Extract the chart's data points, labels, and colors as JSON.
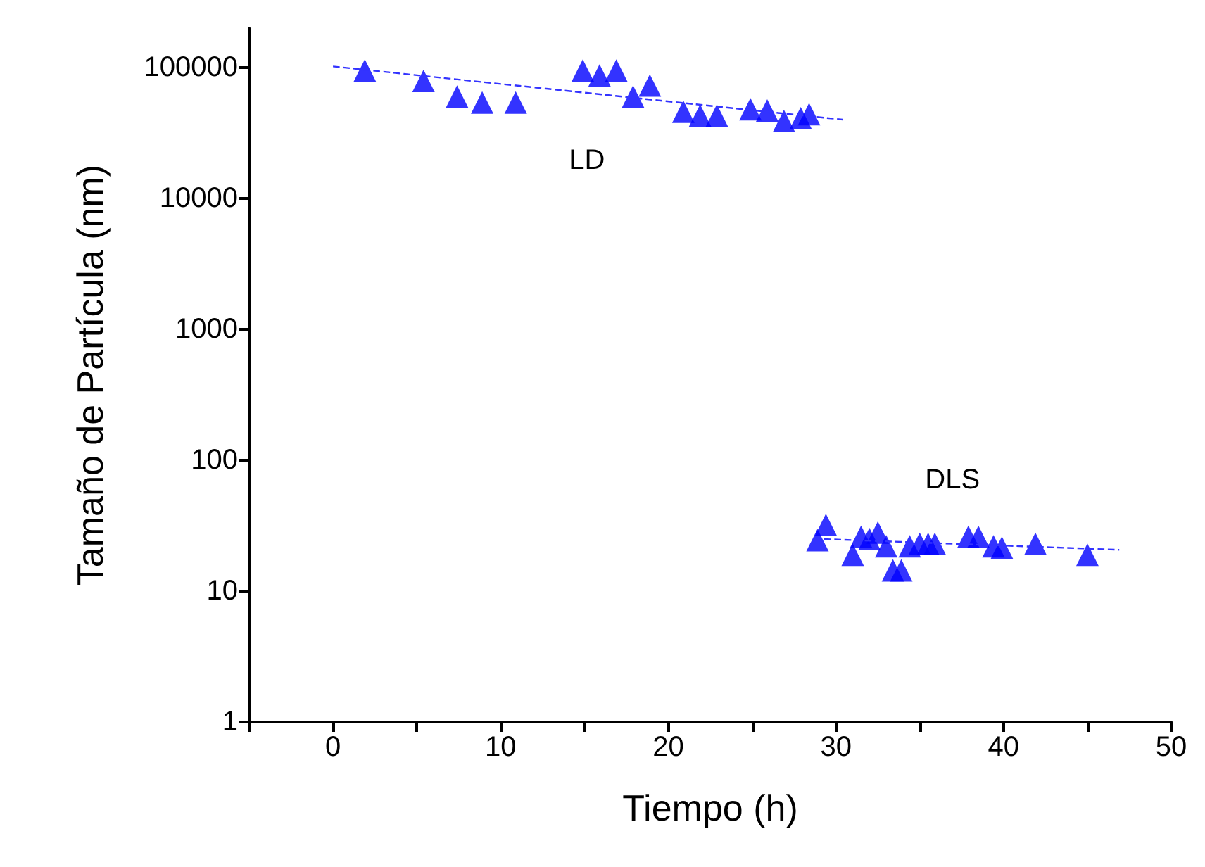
{
  "chart_data": {
    "type": "scatter",
    "xlabel": "Tiempo (h)",
    "ylabel": "Tamaño de Partícula (nm)",
    "log": "y",
    "marker": "triangle",
    "grid": false,
    "legend": false,
    "xlim": [
      -5,
      50
    ],
    "xticks": [
      {
        "value": -5,
        "label": null
      },
      0,
      {
        "value": 5,
        "label": null
      },
      10,
      {
        "value": 15,
        "label": null
      },
      20,
      {
        "value": 25,
        "label": null
      },
      30,
      {
        "value": 35,
        "label": null
      },
      40,
      {
        "value": 45,
        "label": null
      },
      50
    ],
    "ylim": [
      1,
      200000
    ],
    "yticks": [
      1,
      10,
      100,
      1000,
      10000,
      100000
    ],
    "series": [
      {
        "name": "LD",
        "color": "#0000ff",
        "x": [
          1.9,
          5.4,
          7.4,
          8.9,
          10.9,
          14.9,
          15.9,
          16.9,
          17.9,
          18.9,
          20.9,
          21.9,
          22.9,
          24.9,
          25.9,
          26.9,
          27.9,
          28.4
        ],
        "values": [
          95000,
          79000,
          60000,
          54000,
          54000,
          95000,
          87000,
          95000,
          60000,
          73000,
          46000,
          43000,
          43000,
          48000,
          47000,
          39000,
          41000,
          44000
        ]
      },
      {
        "name": "DLS",
        "color": "#0000ff",
        "x": [
          29.4,
          28.9,
          31.0,
          31.5,
          32,
          32.5,
          33,
          33.4,
          33.9,
          34.4,
          35,
          35.5,
          35.9,
          37.9,
          38.5,
          39.4,
          39.9,
          41.9,
          45
        ],
        "values": [
          32,
          24.5,
          19,
          26,
          25,
          28,
          22,
          14.4,
          14.4,
          22,
          23,
          23,
          23,
          26,
          26,
          22,
          21.5,
          23,
          19
        ]
      },
      {
        "type": "line",
        "color": "#3333ff",
        "line_style": "dashed",
        "marker": "none",
        "x": [
          0,
          30.4
        ],
        "values": [
          102000,
          40000
        ]
      },
      {
        "type": "line",
        "color": "#3333ff",
        "line_style": "dashed",
        "marker": "none",
        "x": [
          29.3,
          46.9
        ],
        "values": [
          25,
          20.7
        ]
      }
    ]
  }
}
